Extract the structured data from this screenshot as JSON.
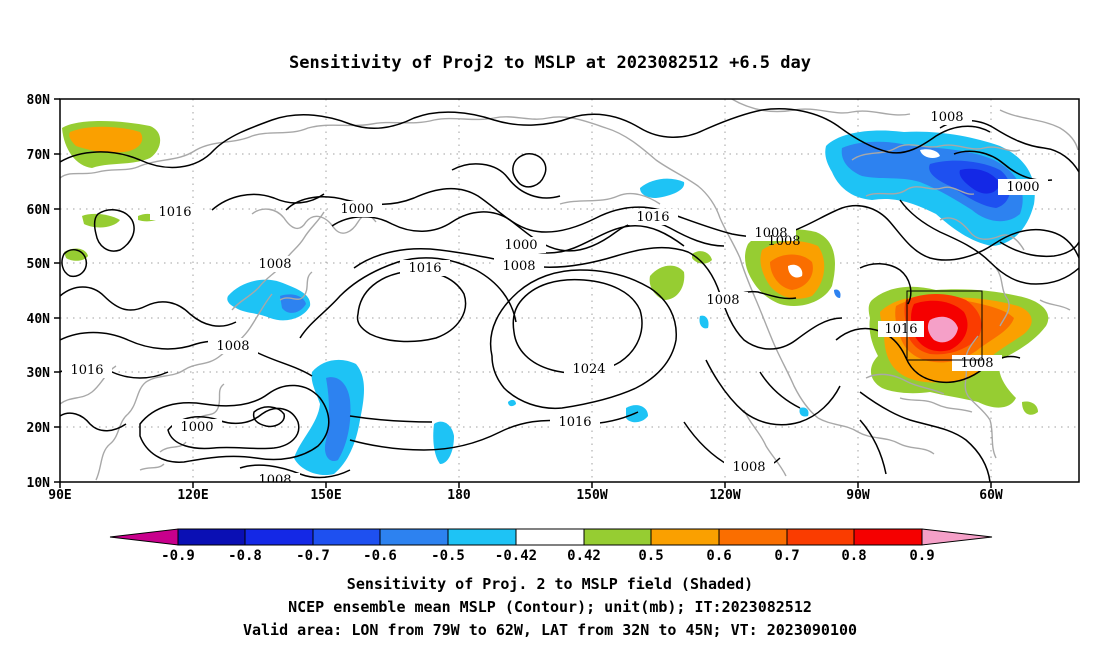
{
  "title": "Sensitivity of Proj2 to MSLP at 2023082512 +6.5 day",
  "map": {
    "lat_labels": [
      "80N",
      "70N",
      "60N",
      "50N",
      "40N",
      "30N",
      "20N",
      "10N"
    ],
    "lon_labels": [
      "90E",
      "120E",
      "150E",
      "180",
      "150W",
      "120W",
      "90W",
      "60W"
    ],
    "lon_range": [
      "90E",
      "30W"
    ],
    "lat_range": [
      "10N",
      "80N"
    ],
    "grid": "dotted",
    "valid_box": {
      "lon": [
        "79W",
        "62W"
      ],
      "lat": [
        "32N",
        "45N"
      ]
    }
  },
  "contour_labels": [
    "1016",
    "1000",
    "1008",
    "1000",
    "1008",
    "1016",
    "1008",
    "1008",
    "1008",
    "1000",
    "1008",
    "1008",
    "1016",
    "1016",
    "1008",
    "1016",
    "1000",
    "1016",
    "1024",
    "1008",
    "1008"
  ],
  "colorbar": {
    "labels": [
      "-0.9",
      "-0.8",
      "-0.7",
      "-0.6",
      "-0.5",
      "-0.42",
      "0.42",
      "0.5",
      "0.6",
      "0.7",
      "0.8",
      "0.9"
    ],
    "colors": [
      "#c8008c",
      "#0a0fb4",
      "#1428e6",
      "#1e50f0",
      "#2d82f0",
      "#1ec3f5",
      "#ffffff",
      "#96cd32",
      "#faa000",
      "#fa6e00",
      "#fa3c00",
      "#f50000",
      "#f5a0c8"
    ]
  },
  "captions": [
    "Sensitivity of Proj. 2 to MSLP field (Shaded)",
    "NCEP ensemble mean MSLP (Contour); unit(mb); IT:2023082512",
    "Valid area: LON from 79W to 62W, LAT from 32N to 45N; VT: 2023090100"
  ]
}
